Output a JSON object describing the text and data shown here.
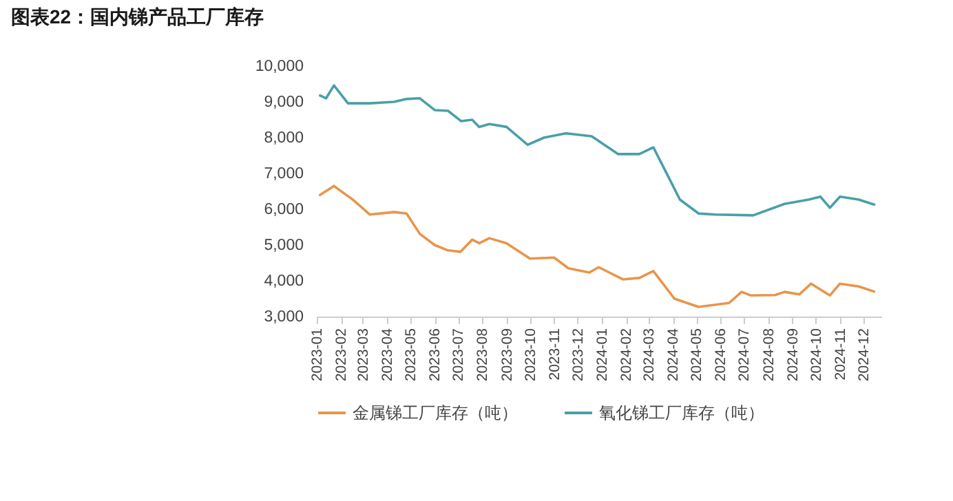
{
  "chart_data": {
    "type": "line",
    "title": "图表22：国内锑产品工厂库存",
    "series": [
      {
        "name": "金属锑工厂库存（吨）",
        "color": "#e8954a",
        "x": [
          "2023-01-04",
          "2023-01-23",
          "2023-02-16",
          "2023-03-10",
          "2023-04-10",
          "2023-04-26",
          "2023-05-13",
          "2023-06-01",
          "2023-06-18",
          "2023-07-04",
          "2023-07-19",
          "2023-07-28",
          "2023-08-10",
          "2023-09-01",
          "2023-10-01",
          "2023-11-01",
          "2023-11-19",
          "2023-12-16",
          "2023-12-28",
          "2024-01-28",
          "2024-02-18",
          "2024-03-07",
          "2024-04-03",
          "2024-05-04",
          "2024-06-12",
          "2024-06-28",
          "2024-07-10",
          "2024-08-10",
          "2024-08-22",
          "2024-09-10",
          "2024-09-25",
          "2024-10-19",
          "2024-11-01",
          "2024-11-25",
          "2024-12-16"
        ],
        "values": [
          6380,
          6650,
          6270,
          5850,
          5920,
          5880,
          5310,
          5000,
          4850,
          4810,
          5150,
          5050,
          5190,
          5050,
          4620,
          4650,
          4350,
          4230,
          4380,
          4040,
          4080,
          4270,
          3500,
          3270,
          3380,
          3690,
          3590,
          3600,
          3690,
          3620,
          3920,
          3590,
          3920,
          3840,
          3690
        ]
      },
      {
        "name": "氧化锑工厂库存（吨）",
        "color": "#4a9fa8",
        "x": [
          "2023-01-04",
          "2023-01-13",
          "2023-01-23",
          "2023-02-10",
          "2023-03-10",
          "2023-04-10",
          "2023-04-26",
          "2023-05-13",
          "2023-06-01",
          "2023-06-18",
          "2023-07-05",
          "2023-07-19",
          "2023-07-28",
          "2023-08-10",
          "2023-09-01",
          "2023-09-28",
          "2023-10-19",
          "2023-11-16",
          "2023-12-19",
          "2024-01-22",
          "2024-02-18",
          "2024-03-07",
          "2024-03-25",
          "2024-04-10",
          "2024-05-04",
          "2024-05-25",
          "2024-07-13",
          "2024-08-22",
          "2024-09-22",
          "2024-10-07",
          "2024-10-19",
          "2024-11-01",
          "2024-11-25",
          "2024-12-16"
        ],
        "values": [
          9190,
          9100,
          9460,
          8960,
          8960,
          9000,
          9080,
          9100,
          8770,
          8750,
          8460,
          8500,
          8300,
          8380,
          8300,
          7800,
          8000,
          8120,
          8040,
          7540,
          7540,
          7730,
          6960,
          6270,
          5880,
          5850,
          5830,
          6150,
          6270,
          6350,
          6040,
          6350,
          6270,
          6120
        ]
      }
    ],
    "xlim": [
      "2023-01-01",
      "2024-12-24"
    ],
    "xticks": [
      "2023-01",
      "2023-02",
      "2023-03",
      "2023-04",
      "2023-05",
      "2023-06",
      "2023-07",
      "2023-08",
      "2023-09",
      "2023-10",
      "2023-11",
      "2023-12",
      "2024-01",
      "2024-02",
      "2024-03",
      "2024-04",
      "2024-05",
      "2024-06",
      "2024-07",
      "2024-08",
      "2024-09",
      "2024-10",
      "2024-11",
      "2024-12"
    ],
    "ylim": [
      3000,
      10000
    ],
    "yticks": [
      {
        "value": 3000,
        "label": "3,000"
      },
      {
        "value": 4000,
        "label": "4,000"
      },
      {
        "value": 5000,
        "label": "5,000"
      },
      {
        "value": 6000,
        "label": "6,000"
      },
      {
        "value": 7000,
        "label": "7,000"
      },
      {
        "value": 8000,
        "label": "8,000"
      },
      {
        "value": 9000,
        "label": "9,000"
      },
      {
        "value": 10000,
        "label": "10,000"
      }
    ],
    "grid": false,
    "legend": "bottom"
  }
}
